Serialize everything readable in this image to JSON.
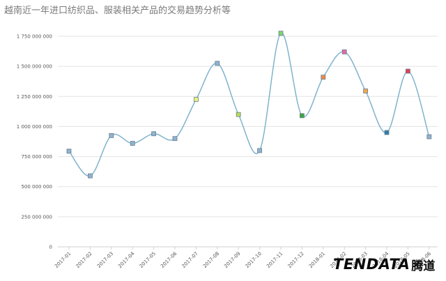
{
  "title": "越南近一年进口纺织品、服装相关产品的交易趋势分析等",
  "logo": {
    "text": "TENDATA",
    "cn": "腾道"
  },
  "chart_data": {
    "type": "line",
    "title": "越南近一年进口纺织品、服装相关产品的交易趋势分析等",
    "xlabel": "",
    "ylabel": "",
    "ylim": [
      0,
      1750000000
    ],
    "y_ticks": [
      0,
      250000000,
      500000000,
      750000000,
      1000000000,
      1250000000,
      1500000000,
      1750000000
    ],
    "y_tick_labels": [
      "0",
      "250 000 000",
      "500 000 000",
      "750 000 000",
      "1 000 000 000",
      "1 250 000 000",
      "1 500 000 000",
      "1 750 000 000"
    ],
    "categories": [
      "2017-01",
      "2017-02",
      "2017-03",
      "2017-04",
      "2017-05",
      "2017-06",
      "2017-07",
      "2017-08",
      "2017-09",
      "2017-10",
      "2017-11",
      "2017-12",
      "2018-01",
      "2018-02",
      "2018-03",
      "2018-04",
      "2018-05",
      "2018-06"
    ],
    "values": [
      795000000,
      590000000,
      925000000,
      860000000,
      940000000,
      900000000,
      1225000000,
      1525000000,
      1100000000,
      800000000,
      1775000000,
      1090000000,
      1410000000,
      1620000000,
      1295000000,
      950000000,
      1460000000,
      915000000
    ],
    "marker_colors": [
      "#8fb2cf",
      "#8fb2cf",
      "#8fb2cf",
      "#8fb2cf",
      "#8fb2cf",
      "#8fb2cf",
      "#e9f27a",
      "#8fb2cf",
      "#b9dc5a",
      "#8fb2cf",
      "#7fd66a",
      "#3ea63e",
      "#ee8a4a",
      "#e06aa6",
      "#f0a850",
      "#2f7fa8",
      "#e04054",
      "#8fb2cf"
    ],
    "line_color": "#7fb3cc",
    "grid": true
  }
}
